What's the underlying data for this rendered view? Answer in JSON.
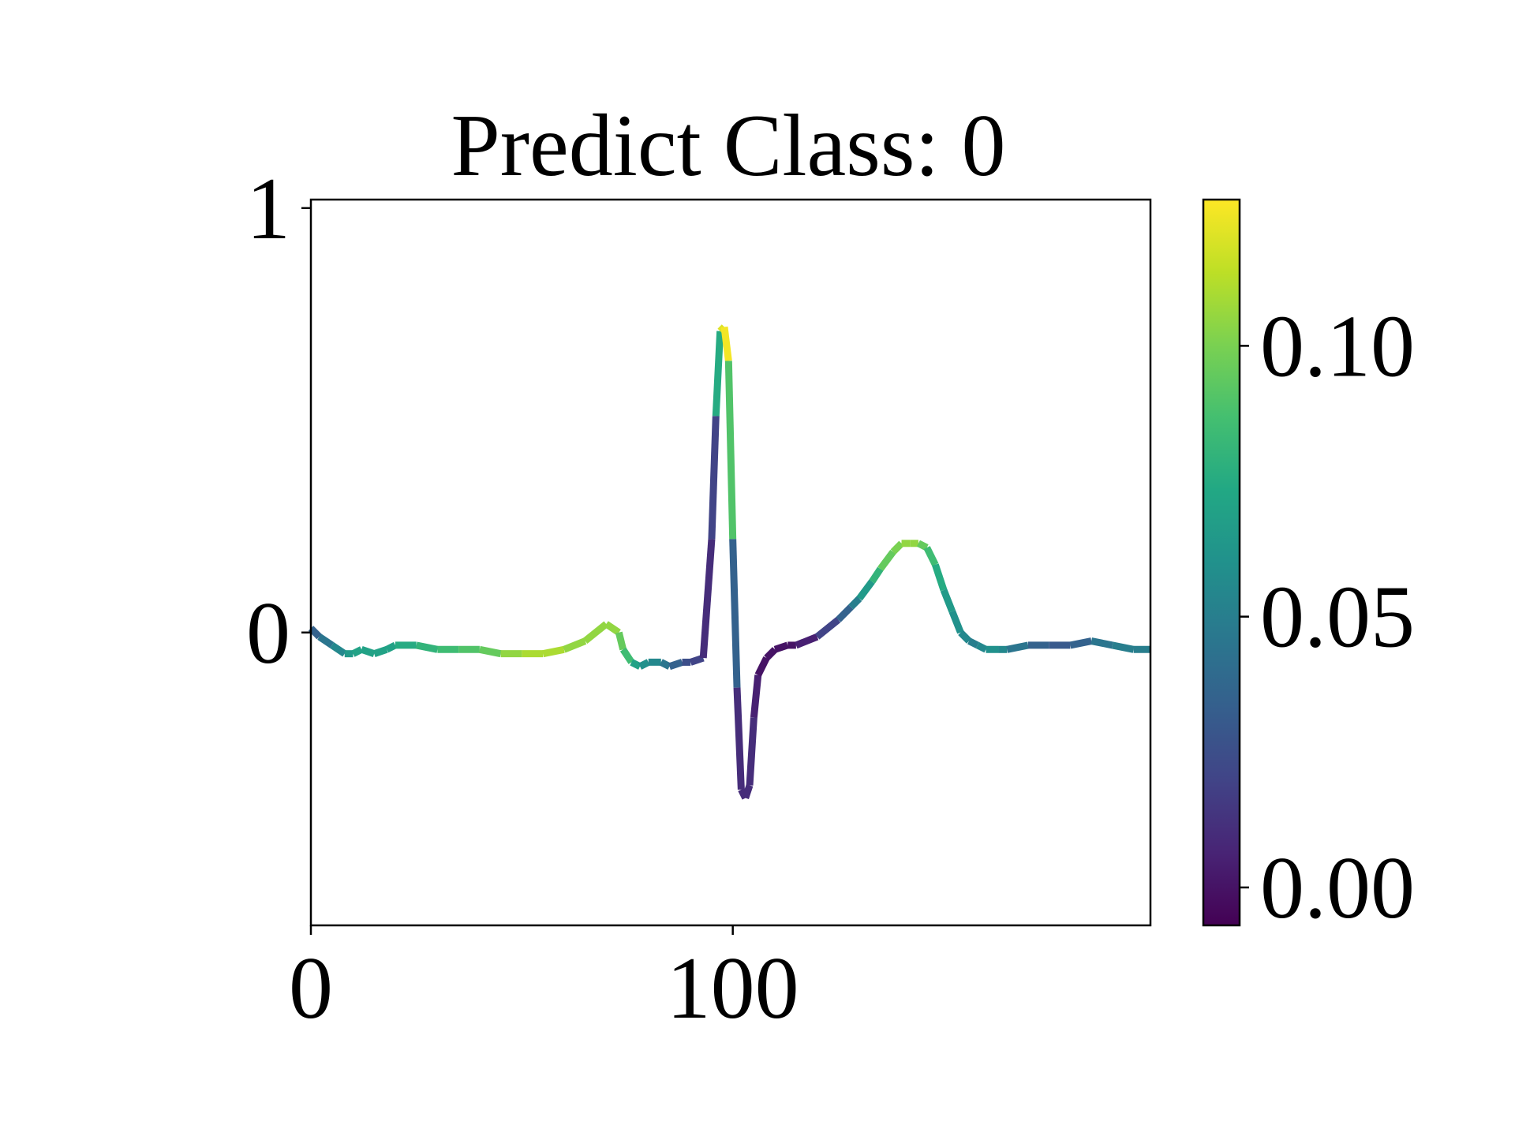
{
  "chart_data": {
    "type": "line",
    "title": "Predict Class: 0",
    "xlabel": "",
    "ylabel": "",
    "xlim": [
      0,
      199
    ],
    "ylim": [
      -0.69,
      1.02
    ],
    "grid": false,
    "legend": "none",
    "x_ticks": [
      0,
      100
    ],
    "y_ticks": [
      0,
      1
    ],
    "x_tick_labels": [
      "0",
      "100"
    ],
    "y_tick_labels": [
      "0",
      "1"
    ],
    "colorbar": {
      "colormap": "viridis",
      "range": [
        -0.007,
        0.127
      ],
      "ticks": [
        0.0,
        0.05,
        0.1
      ],
      "tick_labels": [
        "0.00",
        "0.05",
        "0.10"
      ]
    },
    "series": [
      {
        "x": [
          0,
          2,
          5,
          8,
          10,
          12,
          15,
          18,
          20,
          25,
          30,
          35,
          40,
          45,
          50,
          55,
          60,
          65,
          70,
          73,
          74,
          76,
          78,
          80,
          83,
          85,
          88,
          90,
          93,
          95,
          96,
          97,
          98,
          99,
          100,
          101,
          102,
          103,
          104,
          105,
          106,
          108,
          110,
          113,
          115,
          120,
          125,
          128,
          130,
          133,
          135,
          138,
          140,
          142,
          144,
          146,
          148,
          150,
          152,
          154,
          156,
          158,
          160,
          163,
          165,
          170,
          175,
          180,
          185,
          190,
          195,
          199
        ],
        "y": [
          0.01,
          -0.01,
          -0.03,
          -0.05,
          -0.05,
          -0.04,
          -0.05,
          -0.04,
          -0.03,
          -0.03,
          -0.04,
          -0.04,
          -0.04,
          -0.05,
          -0.05,
          -0.05,
          -0.04,
          -0.02,
          0.02,
          0.0,
          -0.04,
          -0.07,
          -0.08,
          -0.07,
          -0.07,
          -0.08,
          -0.07,
          -0.07,
          -0.06,
          0.22,
          0.51,
          0.71,
          0.72,
          0.64,
          0.22,
          -0.13,
          -0.37,
          -0.39,
          -0.36,
          -0.2,
          -0.1,
          -0.06,
          -0.04,
          -0.03,
          -0.03,
          -0.01,
          0.03,
          0.06,
          0.08,
          0.12,
          0.15,
          0.19,
          0.21,
          0.21,
          0.21,
          0.2,
          0.16,
          0.1,
          0.05,
          0.0,
          -0.02,
          -0.03,
          -0.04,
          -0.04,
          -0.04,
          -0.03,
          -0.03,
          -0.03,
          -0.02,
          -0.03,
          -0.04,
          -0.04
        ],
        "attribution": [
          0.03,
          0.04,
          0.05,
          0.06,
          0.07,
          0.07,
          0.07,
          0.07,
          0.07,
          0.08,
          0.08,
          0.09,
          0.09,
          0.1,
          0.11,
          0.11,
          0.11,
          0.1,
          0.11,
          0.1,
          0.09,
          0.08,
          0.06,
          0.06,
          0.05,
          0.04,
          0.03,
          0.02,
          0.02,
          0.0,
          0.04,
          0.11,
          0.13,
          0.12,
          0.06,
          0.01,
          0.01,
          0.01,
          0.01,
          0.01,
          0.0,
          0.0,
          0.0,
          0.0,
          0.0,
          0.01,
          0.03,
          0.04,
          0.06,
          0.07,
          0.09,
          0.1,
          0.1,
          0.11,
          0.1,
          0.09,
          0.08,
          0.07,
          0.06,
          0.06,
          0.05,
          0.05,
          0.06,
          0.06,
          0.05,
          0.04,
          0.03,
          0.03,
          0.04,
          0.05,
          0.05,
          0.05
        ]
      }
    ]
  }
}
